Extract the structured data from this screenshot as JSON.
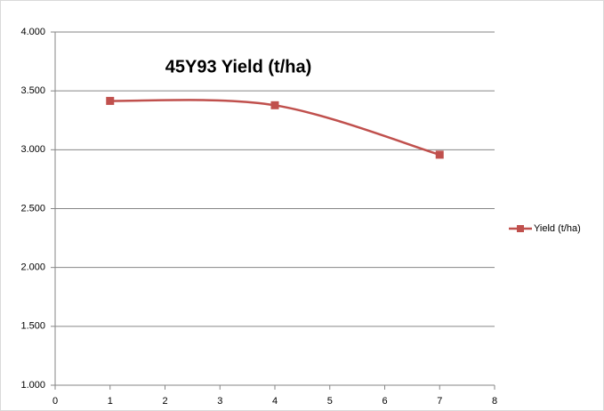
{
  "chart_data": {
    "type": "scatter-smooth",
    "title": "45Y93 Yield (t/ha)",
    "series": [
      {
        "name": "Yield (t/ha)",
        "color": "#c0504d",
        "x": [
          1,
          4,
          7
        ],
        "values": [
          3.415,
          3.378,
          2.958
        ]
      }
    ],
    "xlim": [
      0,
      8
    ],
    "xticks": [
      0,
      1,
      2,
      3,
      4,
      5,
      6,
      7,
      8
    ],
    "ylim": [
      1,
      4
    ],
    "yticks": [
      {
        "value": 1,
        "label": "1.000"
      },
      {
        "value": 1.5,
        "label": "1.500"
      },
      {
        "value": 2,
        "label": "2.000"
      },
      {
        "value": 2.5,
        "label": "2.500"
      },
      {
        "value": 3,
        "label": "3.000"
      },
      {
        "value": 3.5,
        "label": "3.500"
      },
      {
        "value": 4,
        "label": "4.000"
      }
    ],
    "grid": true,
    "legend": "right"
  }
}
